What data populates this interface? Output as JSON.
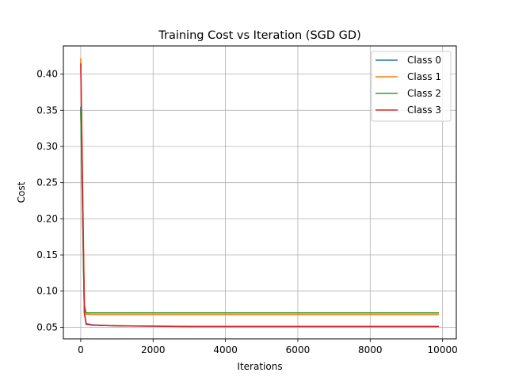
{
  "chart_data": {
    "type": "line",
    "title": "Training Cost vs Iteration (SGD GD)",
    "xlabel": "Iterations",
    "ylabel": "Cost",
    "xlim": [
      -480,
      10380
    ],
    "ylim": [
      0.034,
      0.439
    ],
    "xticks": [
      0,
      2000,
      4000,
      6000,
      8000,
      10000
    ],
    "xtick_labels": [
      "0",
      "2000",
      "4000",
      "6000",
      "8000",
      "10000"
    ],
    "yticks": [
      0.05,
      0.1,
      0.15,
      0.2,
      0.25,
      0.3,
      0.35,
      0.4
    ],
    "ytick_labels": [
      "0.05",
      "0.10",
      "0.15",
      "0.20",
      "0.25",
      "0.30",
      "0.35",
      "0.40"
    ],
    "grid": true,
    "legend_position": "top-right",
    "series": [
      {
        "name": "Class 0",
        "color": "#1f77b4",
        "x": [
          0,
          100,
          150,
          300,
          600,
          1000,
          2000,
          3000,
          5000,
          7000,
          9900
        ],
        "y": [
          0.355,
          0.07,
          0.055,
          0.0535,
          0.0525,
          0.052,
          0.0515,
          0.051,
          0.051,
          0.051,
          0.051
        ]
      },
      {
        "name": "Class 1",
        "color": "#ff7f0e",
        "x": [
          0,
          100,
          150,
          300,
          1000,
          3000,
          6000,
          9900
        ],
        "y": [
          0.422,
          0.08,
          0.068,
          0.0675,
          0.0675,
          0.0675,
          0.0675,
          0.0675
        ]
      },
      {
        "name": "Class 2",
        "color": "#2ca02c",
        "x": [
          0,
          100,
          150,
          300,
          1000,
          3000,
          6000,
          9900
        ],
        "y": [
          0.35,
          0.08,
          0.07,
          0.07,
          0.07,
          0.07,
          0.07,
          0.07
        ]
      },
      {
        "name": "Class 3",
        "color": "#d62728",
        "x": [
          0,
          100,
          150,
          300,
          600,
          1000,
          2000,
          3000,
          5000,
          7000,
          9900
        ],
        "y": [
          0.415,
          0.07,
          0.054,
          0.053,
          0.0525,
          0.052,
          0.0515,
          0.051,
          0.051,
          0.051,
          0.051
        ]
      }
    ]
  }
}
